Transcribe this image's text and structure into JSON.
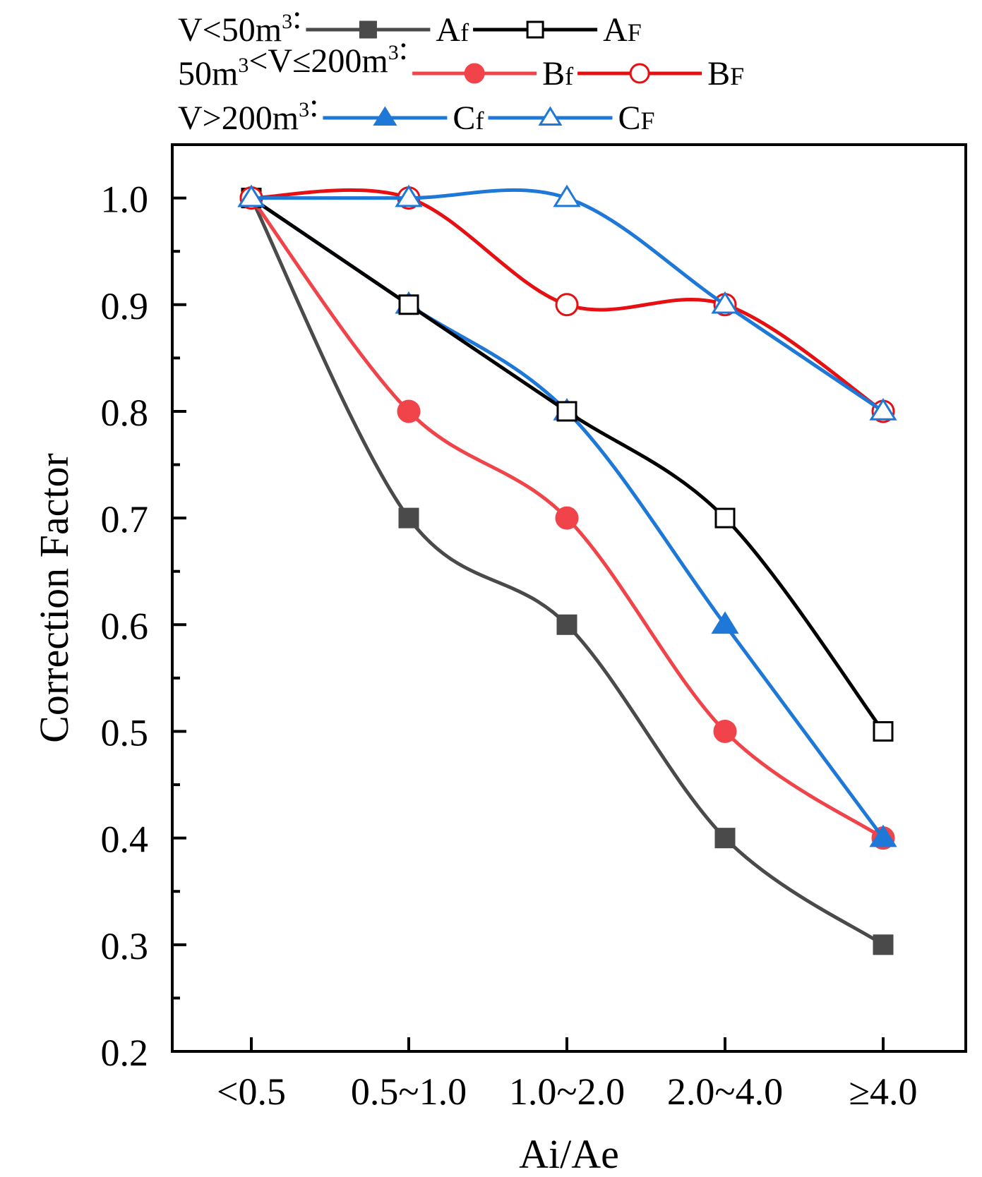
{
  "chart_data": {
    "type": "line",
    "categories": [
      "<0.5",
      "0.5~1.0",
      "1.0~2.0",
      "2.0~4.0",
      "≥4.0"
    ],
    "xlabel": "Ai/Ae",
    "ylabel": "Correction Factor",
    "ylim": [
      0.2,
      1.05
    ],
    "yticks": [
      0.2,
      0.3,
      0.4,
      0.5,
      0.6,
      0.7,
      0.8,
      0.9,
      1.0
    ],
    "ytick_labels": [
      "0.2",
      "0.3",
      "0.4",
      "0.5",
      "0.6",
      "0.7",
      "0.8",
      "0.9",
      "1.0"
    ],
    "legend_placement": "top, outside plot",
    "legend_groups": [
      {
        "label_prefix": "V<50m",
        "label_sup": "3",
        "label_suffix": ":",
        "series": [
          0,
          1
        ]
      },
      {
        "label_prefix": "50m",
        "label_sup": "3",
        "label_mid": "<V≤200m",
        "label_sup2": "3",
        "label_suffix": ":",
        "series": [
          2,
          3
        ]
      },
      {
        "label_prefix": "V>200m",
        "label_sup": "3",
        "label_suffix": ":",
        "series": [
          4,
          5
        ]
      }
    ],
    "series": [
      {
        "name": "Af",
        "name_main": "A",
        "name_sub": "f",
        "color": "#4a4a4a",
        "marker": "square",
        "filled": true,
        "values": [
          1.0,
          0.7,
          0.6,
          0.4,
          0.3
        ]
      },
      {
        "name": "AF",
        "name_main": "A",
        "name_sub": "F",
        "color": "#000000",
        "marker": "square",
        "filled": false,
        "values": [
          1.0,
          0.9,
          0.8,
          0.7,
          0.5
        ]
      },
      {
        "name": "Bf",
        "name_main": "B",
        "name_sub": "f",
        "color": "#f0434a",
        "marker": "circle",
        "filled": true,
        "values": [
          1.0,
          0.8,
          0.7,
          0.5,
          0.4
        ]
      },
      {
        "name": "BF",
        "name_main": "B",
        "name_sub": "F",
        "color": "#e60f12",
        "marker": "circle",
        "filled": false,
        "values": [
          1.0,
          1.0,
          0.9,
          0.9,
          0.8
        ]
      },
      {
        "name": "Cf",
        "name_main": "C",
        "name_sub": "f",
        "color": "#1e78d8",
        "marker": "triangle",
        "filled": true,
        "values": [
          1.0,
          0.9,
          0.8,
          0.6,
          0.4
        ]
      },
      {
        "name": "CF",
        "name_main": "C",
        "name_sub": "F",
        "color": "#1e78d8",
        "marker": "triangle",
        "filled": false,
        "values": [
          1.0,
          1.0,
          1.0,
          0.9,
          0.8
        ]
      }
    ]
  }
}
